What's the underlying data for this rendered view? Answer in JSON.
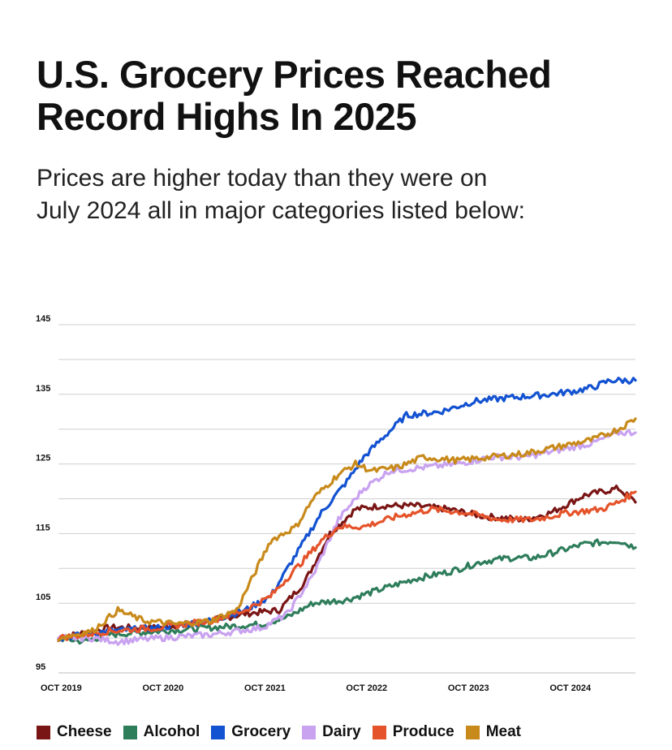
{
  "header": {
    "title_line1": "U.S. Grocery Prices Reached",
    "title_line2": "Record Highs In 2025",
    "subtitle_line1": "Prices are higher today than they were on",
    "subtitle_line2": "July 2024 all in major categories listed below:"
  },
  "chart_data": {
    "type": "line",
    "title": "U.S. Grocery Prices Reached Record Highs In 2025",
    "subtitle": "Prices are higher today than they were on July 2024 all in major categories listed below:",
    "xlabel": "",
    "ylabel": "",
    "x_start": "Oct 2019",
    "x_unit": "months since Oct 2019",
    "xlim": [
      0,
      68
    ],
    "ylim": [
      95,
      145
    ],
    "y_ticks": [
      {
        "value": 95,
        "label": "95"
      },
      {
        "value": 105,
        "label": "105"
      },
      {
        "value": 115,
        "label": "115"
      },
      {
        "value": 125,
        "label": "125"
      },
      {
        "value": 135,
        "label": "135"
      },
      {
        "value": 145,
        "label": "145"
      }
    ],
    "gridlines": [
      100,
      105,
      110,
      115,
      120,
      125,
      130,
      135,
      140,
      145
    ],
    "x_ticks": [
      {
        "value": 0,
        "label": "OCT 2019"
      },
      {
        "value": 12,
        "label": "OCT 2020"
      },
      {
        "value": 24,
        "label": "OCT 2021"
      },
      {
        "value": 36,
        "label": "OCT 2022"
      },
      {
        "value": 48,
        "label": "OCT 2023"
      },
      {
        "value": 60,
        "label": "OCT 2024"
      }
    ],
    "legend_position": "bottom",
    "series": [
      {
        "name": "Cheese",
        "color": "#7a1515",
        "points": [
          [
            0,
            100
          ],
          [
            6,
            101.5
          ],
          [
            12,
            101.5
          ],
          [
            18,
            102.5
          ],
          [
            22,
            103.5
          ],
          [
            26,
            104
          ],
          [
            29,
            108
          ],
          [
            32,
            115
          ],
          [
            35,
            118.5
          ],
          [
            38,
            119
          ],
          [
            42,
            119
          ],
          [
            46,
            118.5
          ],
          [
            50,
            117.5
          ],
          [
            55,
            117
          ],
          [
            58,
            118
          ],
          [
            62,
            120.5
          ],
          [
            66,
            121.5
          ],
          [
            68,
            119.5
          ]
        ]
      },
      {
        "name": "Alcohol",
        "color": "#2e7d5b",
        "points": [
          [
            0,
            100
          ],
          [
            3,
            99.5
          ],
          [
            6,
            100.5
          ],
          [
            12,
            101
          ],
          [
            18,
            101.5
          ],
          [
            24,
            102
          ],
          [
            27,
            103
          ],
          [
            30,
            105
          ],
          [
            34,
            105.5
          ],
          [
            38,
            107
          ],
          [
            42,
            108.5
          ],
          [
            46,
            109.5
          ],
          [
            50,
            111
          ],
          [
            53,
            111.5
          ],
          [
            56,
            111.5
          ],
          [
            59,
            112.5
          ],
          [
            62,
            113.5
          ],
          [
            66,
            114
          ],
          [
            68,
            113
          ]
        ]
      },
      {
        "name": "Grocery",
        "color": "#1352d1",
        "points": [
          [
            0,
            100
          ],
          [
            6,
            101
          ],
          [
            12,
            101.5
          ],
          [
            18,
            102.5
          ],
          [
            22,
            104
          ],
          [
            25,
            106
          ],
          [
            28,
            112
          ],
          [
            31,
            118
          ],
          [
            34,
            122.5
          ],
          [
            36,
            126
          ],
          [
            38,
            128.5
          ],
          [
            41,
            132
          ],
          [
            45,
            132.5
          ],
          [
            49,
            134
          ],
          [
            53,
            134.5
          ],
          [
            58,
            135
          ],
          [
            61,
            135.5
          ],
          [
            63,
            136
          ],
          [
            65,
            137
          ],
          [
            68,
            137
          ]
        ]
      },
      {
        "name": "Dairy",
        "color": "#c9a2f0",
        "points": [
          [
            0,
            100
          ],
          [
            4,
            100
          ],
          [
            7,
            99.5
          ],
          [
            12,
            100
          ],
          [
            18,
            100.5
          ],
          [
            24,
            101.5
          ],
          [
            27,
            103.5
          ],
          [
            30,
            109
          ],
          [
            33,
            117
          ],
          [
            36,
            121.5
          ],
          [
            39,
            124
          ],
          [
            43,
            124.5
          ],
          [
            47,
            125
          ],
          [
            51,
            126
          ],
          [
            55,
            126
          ],
          [
            59,
            127
          ],
          [
            63,
            128
          ],
          [
            66,
            129.5
          ],
          [
            68,
            129.5
          ]
        ]
      },
      {
        "name": "Produce",
        "color": "#e5532a",
        "points": [
          [
            0,
            100
          ],
          [
            6,
            101
          ],
          [
            12,
            101.5
          ],
          [
            18,
            102.5
          ],
          [
            22,
            104
          ],
          [
            25,
            106
          ],
          [
            28,
            110
          ],
          [
            31,
            114
          ],
          [
            33,
            116
          ],
          [
            36,
            116
          ],
          [
            40,
            117.5
          ],
          [
            44,
            118.5
          ],
          [
            48,
            118
          ],
          [
            52,
            117
          ],
          [
            56,
            117
          ],
          [
            60,
            118
          ],
          [
            64,
            118.5
          ],
          [
            66,
            119.5
          ],
          [
            68,
            121
          ]
        ]
      },
      {
        "name": "Meat",
        "color": "#c88a1b",
        "points": [
          [
            0,
            100
          ],
          [
            4,
            101
          ],
          [
            7,
            104
          ],
          [
            10,
            102.5
          ],
          [
            14,
            102
          ],
          [
            18,
            102.5
          ],
          [
            21,
            104
          ],
          [
            23,
            109
          ],
          [
            25,
            114
          ],
          [
            28,
            116
          ],
          [
            30,
            120
          ],
          [
            33,
            123.5
          ],
          [
            35,
            125
          ],
          [
            37,
            124
          ],
          [
            40,
            124.5
          ],
          [
            43,
            126
          ],
          [
            47,
            125.5
          ],
          [
            51,
            126
          ],
          [
            55,
            126.5
          ],
          [
            59,
            127.5
          ],
          [
            63,
            128.5
          ],
          [
            66,
            130
          ],
          [
            68,
            131.5
          ]
        ]
      }
    ]
  },
  "legend": {
    "items": [
      {
        "label": "Cheese",
        "color": "#7a1515"
      },
      {
        "label": "Alcohol",
        "color": "#2e7d5b"
      },
      {
        "label": "Grocery",
        "color": "#1352d1"
      },
      {
        "label": "Dairy",
        "color": "#c9a2f0"
      },
      {
        "label": "Produce",
        "color": "#e5532a"
      },
      {
        "label": "Meat",
        "color": "#c88a1b"
      }
    ]
  }
}
